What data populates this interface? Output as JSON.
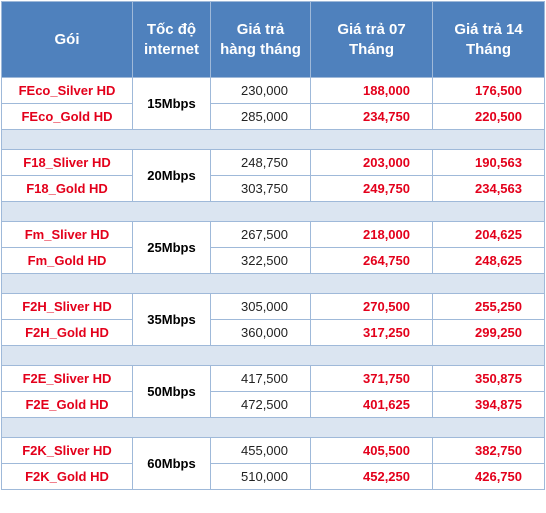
{
  "headers": {
    "package": [
      "Gói"
    ],
    "speed": [
      "Tốc độ",
      "internet"
    ],
    "monthly": [
      "Giá trả",
      "hàng tháng"
    ],
    "price7": [
      "Giá trả 07",
      "Tháng"
    ],
    "price14": [
      "Giá trả 14",
      "Tháng"
    ]
  },
  "groups": [
    {
      "speed": "15Mbps",
      "rows": [
        {
          "name": "FEco_Silver HD",
          "monthly": "230,000",
          "p7": "188,000",
          "p14": "176,500"
        },
        {
          "name": "FEco_Gold HD",
          "monthly": "285,000",
          "p7": "234,750",
          "p14": "220,500"
        }
      ]
    },
    {
      "speed": "20Mbps",
      "rows": [
        {
          "name": "F18_Sliver HD",
          "monthly": "248,750",
          "p7": "203,000",
          "p14": "190,563"
        },
        {
          "name": "F18_Gold HD",
          "monthly": "303,750",
          "p7": "249,750",
          "p14": "234,563"
        }
      ]
    },
    {
      "speed": "25Mbps",
      "rows": [
        {
          "name": "Fm_Sliver HD",
          "monthly": "267,500",
          "p7": "218,000",
          "p14": "204,625"
        },
        {
          "name": "Fm_Gold HD",
          "monthly": "322,500",
          "p7": "264,750",
          "p14": "248,625"
        }
      ]
    },
    {
      "speed": "35Mbps",
      "rows": [
        {
          "name": "F2H_Sliver HD",
          "monthly": "305,000",
          "p7": "270,500",
          "p14": "255,250"
        },
        {
          "name": "F2H_Gold HD",
          "monthly": "360,000",
          "p7": "317,250",
          "p14": "299,250"
        }
      ]
    },
    {
      "speed": "50Mbps",
      "rows": [
        {
          "name": "F2E_Sliver HD",
          "monthly": "417,500",
          "p7": "371,750",
          "p14": "350,875"
        },
        {
          "name": "F2E_Gold HD",
          "monthly": "472,500",
          "p7": "401,625",
          "p14": "394,875"
        }
      ]
    },
    {
      "speed": "60Mbps",
      "rows": [
        {
          "name": "F2K_Sliver HD",
          "monthly": "455,000",
          "p7": "405,500",
          "p14": "382,750"
        },
        {
          "name": "F2K_Gold HD",
          "monthly": "510,000",
          "p7": "452,250",
          "p14": "426,750"
        }
      ]
    }
  ],
  "colors": {
    "header_bg": "#4f81bd",
    "header_text": "#ffffff",
    "accent_red": "#e3001b",
    "spacer_bg": "#dbe5f1",
    "border": "#9fb9d9"
  }
}
